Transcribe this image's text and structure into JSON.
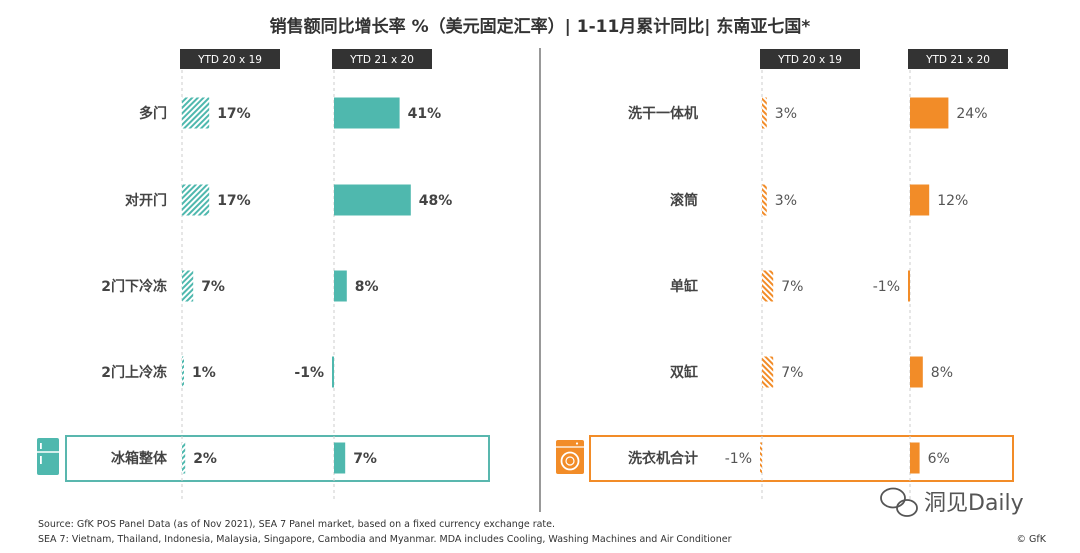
{
  "header": {
    "title": "销售额同比增长率 %（美元固定汇率）| 1-11月累计同比| 东南亚七国*"
  },
  "chart_data": [
    {
      "type": "bar",
      "name": "冰箱",
      "orientation": "horizontal",
      "categories": [
        "多门",
        "对开门",
        "2门下冷冻",
        "2门上冷冻",
        "冰箱整体"
      ],
      "highlight_category": "冰箱整体",
      "series": [
        {
          "name": "YTD 20 x 19",
          "values": [
            17,
            17,
            7,
            1,
            2
          ],
          "style": "hatched",
          "color": "#4fb8ae"
        },
        {
          "name": "YTD 21 x 20",
          "values": [
            41,
            48,
            8,
            -1,
            7
          ],
          "style": "solid",
          "color": "#4fb8ae"
        }
      ],
      "labels": {
        "YTD 20 x 19": [
          "17%",
          "17%",
          "7%",
          "1%",
          "2%"
        ],
        "YTD 21 x 20": [
          "41%",
          "48%",
          "8%",
          "-1%",
          "7%"
        ]
      },
      "accent": "#59b7ae"
    },
    {
      "type": "bar",
      "name": "洗衣机",
      "orientation": "horizontal",
      "categories": [
        "洗干一体机",
        "滚筒",
        "单缸",
        "双缸",
        "洗衣机合计"
      ],
      "highlight_category": "洗衣机合计",
      "series": [
        {
          "name": "YTD 20 x 19",
          "values": [
            3,
            3,
            7,
            7,
            -1
          ],
          "style": "hatched",
          "color": "#f28c28"
        },
        {
          "name": "YTD 21 x 20",
          "values": [
            24,
            12,
            -1,
            8,
            6
          ],
          "style": "solid",
          "color": "#f28c28"
        }
      ],
      "labels": {
        "YTD 20 x 19": [
          "3%",
          "3%",
          "7%",
          "7%",
          "-1%"
        ],
        "YTD 21 x 20": [
          "24%",
          "12%",
          "-1%",
          "8%",
          "6%"
        ]
      },
      "accent": "#f28c28"
    }
  ],
  "footer": {
    "line1": "Source: GfK POS Panel Data (as of Nov 2021), SEA 7 Panel market, based on a fixed currency exchange rate.",
    "line2": "SEA 7: Vietnam, Thailand, Indonesia, Malaysia, Singapore, Cambodia and Myanmar. MDA includes Cooling, Washing Machines and Air Conditioner",
    "copyright": "© GfK"
  },
  "watermark": {
    "text": "洞见Daily"
  },
  "colors": {
    "teal": "#4fb8ae",
    "orange": "#f28c28",
    "header_bg": "#333333"
  },
  "icons": [
    "fridge-icon",
    "washing-machine-icon",
    "wechat-icon"
  ]
}
